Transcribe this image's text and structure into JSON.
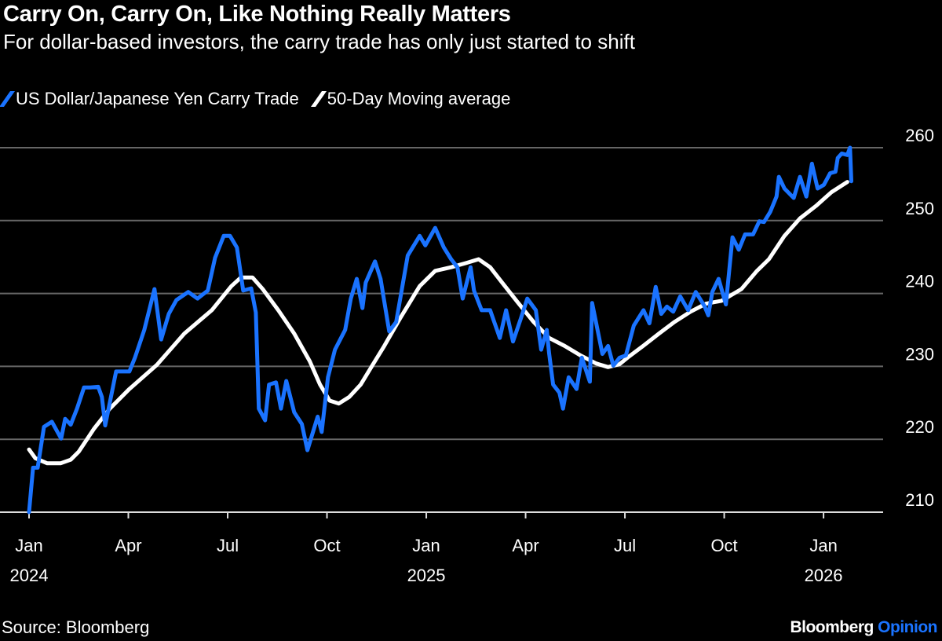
{
  "colors": {
    "blue": "#1a73ff",
    "white": "#ffffff",
    "grid": "#666666",
    "background": "#000000"
  },
  "chart_data": {
    "type": "line",
    "title": "Carry On, Carry On, Like Nothing Really Matters",
    "subtitle": "For dollar-based investors, the carry trade has only just started to shift",
    "x_unit": "months since Jan 2024",
    "ylim": [
      210,
      260
    ],
    "yticks": [
      210,
      220,
      230,
      240,
      250,
      260
    ],
    "axis_position": "right",
    "grid": true,
    "legend_placement": "top-left",
    "xticks": [
      {
        "m": 0,
        "label": "Jan",
        "year": "2024"
      },
      {
        "m": 3,
        "label": "Apr"
      },
      {
        "m": 6,
        "label": "Jul"
      },
      {
        "m": 9,
        "label": "Oct"
      },
      {
        "m": 12,
        "label": "Jan",
        "year": "2025"
      },
      {
        "m": 15,
        "label": "Apr"
      },
      {
        "m": 18,
        "label": "Jul"
      },
      {
        "m": 21,
        "label": "Oct"
      },
      {
        "m": 24,
        "label": "Jan",
        "year": "2026"
      }
    ],
    "series": [
      {
        "name": "US Dollar/Japanese Yen Carry Trade",
        "color": "#1a73ff",
        "points": [
          [
            0,
            210
          ],
          [
            0.12,
            216.1
          ],
          [
            0.26,
            216.1
          ],
          [
            0.45,
            221.7
          ],
          [
            0.69,
            222.4
          ],
          [
            0.97,
            220.1
          ],
          [
            1.09,
            222.8
          ],
          [
            1.26,
            222
          ],
          [
            1.45,
            224.2
          ],
          [
            1.66,
            227.1
          ],
          [
            1.85,
            227.1
          ],
          [
            2.09,
            227.2
          ],
          [
            2.2,
            225.8
          ],
          [
            2.3,
            221.9
          ],
          [
            2.63,
            229.3
          ],
          [
            3.03,
            229.3
          ],
          [
            3.2,
            231.2
          ],
          [
            3.48,
            235
          ],
          [
            3.79,
            240.6
          ],
          [
            3.99,
            233.7
          ],
          [
            4.22,
            237.2
          ],
          [
            4.45,
            239.1
          ],
          [
            4.81,
            240.2
          ],
          [
            5.09,
            239.3
          ],
          [
            5.4,
            240.4
          ],
          [
            5.62,
            244.9
          ],
          [
            5.88,
            247.9
          ],
          [
            6.07,
            247.9
          ],
          [
            6.28,
            246.3
          ],
          [
            6.47,
            240.4
          ],
          [
            6.71,
            240.7
          ],
          [
            6.85,
            237.4
          ],
          [
            6.94,
            224.2
          ],
          [
            7.13,
            222.6
          ],
          [
            7.25,
            227.5
          ],
          [
            7.46,
            227.8
          ],
          [
            7.61,
            224.2
          ],
          [
            7.77,
            228
          ],
          [
            8.01,
            223.7
          ],
          [
            8.24,
            222.1
          ],
          [
            8.41,
            218.5
          ],
          [
            8.72,
            223.1
          ],
          [
            8.84,
            221
          ],
          [
            9.03,
            228.5
          ],
          [
            9.24,
            232.3
          ],
          [
            9.55,
            235
          ],
          [
            9.72,
            239.3
          ],
          [
            9.9,
            242
          ],
          [
            10.07,
            238
          ],
          [
            10.17,
            241.5
          ],
          [
            10.45,
            244.4
          ],
          [
            10.62,
            242
          ],
          [
            10.88,
            234.8
          ],
          [
            11.09,
            236.1
          ],
          [
            11.44,
            245.2
          ],
          [
            11.8,
            247.9
          ],
          [
            11.97,
            246.6
          ],
          [
            12.27,
            249
          ],
          [
            12.53,
            246.3
          ],
          [
            12.75,
            244.7
          ],
          [
            12.94,
            243.6
          ],
          [
            13.1,
            239.3
          ],
          [
            13.34,
            243.6
          ],
          [
            13.44,
            240.4
          ],
          [
            13.67,
            237.7
          ],
          [
            13.93,
            237.7
          ],
          [
            14.22,
            233.9
          ],
          [
            14.41,
            237.7
          ],
          [
            14.62,
            233.4
          ],
          [
            14.86,
            236.6
          ],
          [
            15.05,
            239.3
          ],
          [
            15.31,
            237.7
          ],
          [
            15.47,
            232.3
          ],
          [
            15.64,
            235
          ],
          [
            15.71,
            231.8
          ],
          [
            15.83,
            227.5
          ],
          [
            16.02,
            226.4
          ],
          [
            16.13,
            224.2
          ],
          [
            16.3,
            228.5
          ],
          [
            16.54,
            226.9
          ],
          [
            16.7,
            231.2
          ],
          [
            16.94,
            227.9
          ],
          [
            17.01,
            238.7
          ],
          [
            17.32,
            231.7
          ],
          [
            17.49,
            232.8
          ],
          [
            17.65,
            230.1
          ],
          [
            17.84,
            231.2
          ],
          [
            18.03,
            231.5
          ],
          [
            18.27,
            235.6
          ],
          [
            18.56,
            237.7
          ],
          [
            18.74,
            235.9
          ],
          [
            18.93,
            240.9
          ],
          [
            19.1,
            237.2
          ],
          [
            19.27,
            238.2
          ],
          [
            19.46,
            237.5
          ],
          [
            19.67,
            239.6
          ],
          [
            19.91,
            237.7
          ],
          [
            20.14,
            240.2
          ],
          [
            20.4,
            238.3
          ],
          [
            20.52,
            237
          ],
          [
            20.64,
            240.2
          ],
          [
            20.83,
            242
          ],
          [
            21.05,
            238.5
          ],
          [
            21.25,
            247.7
          ],
          [
            21.44,
            246
          ],
          [
            21.63,
            248.1
          ],
          [
            21.87,
            248.1
          ],
          [
            22.06,
            249.9
          ],
          [
            22.2,
            249.8
          ],
          [
            22.39,
            251.2
          ],
          [
            22.58,
            253.3
          ],
          [
            22.65,
            256
          ],
          [
            22.82,
            254.4
          ],
          [
            23.1,
            253.1
          ],
          [
            23.29,
            256
          ],
          [
            23.48,
            253.3
          ],
          [
            23.65,
            257.8
          ],
          [
            23.82,
            254.4
          ],
          [
            24.01,
            254.9
          ],
          [
            24.2,
            256.5
          ],
          [
            24.36,
            256.7
          ],
          [
            24.43,
            258.6
          ],
          [
            24.55,
            259.2
          ],
          [
            24.72,
            259
          ],
          [
            24.8,
            260
          ],
          [
            24.84,
            255.4
          ]
        ]
      },
      {
        "name": "50-Day Moving average",
        "color": "#ffffff",
        "points": [
          [
            0,
            218.6
          ],
          [
            0.19,
            217.4
          ],
          [
            0.55,
            216.7
          ],
          [
            0.95,
            216.7
          ],
          [
            1.26,
            217.2
          ],
          [
            1.5,
            218.3
          ],
          [
            1.97,
            221.5
          ],
          [
            2.44,
            224.2
          ],
          [
            3.03,
            226.9
          ],
          [
            3.86,
            230.2
          ],
          [
            4.69,
            234.5
          ],
          [
            5.52,
            237.7
          ],
          [
            6.11,
            241
          ],
          [
            6.4,
            242.2
          ],
          [
            6.75,
            242.2
          ],
          [
            7.06,
            240.6
          ],
          [
            7.53,
            237.7
          ],
          [
            8.01,
            234.5
          ],
          [
            8.48,
            230.7
          ],
          [
            8.79,
            227.5
          ],
          [
            9.08,
            225.3
          ],
          [
            9.36,
            224.9
          ],
          [
            9.67,
            225.8
          ],
          [
            10.02,
            227.5
          ],
          [
            10.38,
            230.2
          ],
          [
            10.73,
            232.8
          ],
          [
            11.21,
            236.6
          ],
          [
            11.8,
            241
          ],
          [
            12.27,
            243.1
          ],
          [
            12.75,
            243.6
          ],
          [
            13.22,
            244.2
          ],
          [
            13.58,
            244.7
          ],
          [
            13.93,
            243.6
          ],
          [
            14.29,
            241.5
          ],
          [
            14.76,
            238.8
          ],
          [
            15.24,
            236.1
          ],
          [
            15.71,
            233.9
          ],
          [
            16.18,
            232.8
          ],
          [
            16.66,
            231.5
          ],
          [
            17.13,
            230.4
          ],
          [
            17.49,
            229.9
          ],
          [
            17.84,
            230.3
          ],
          [
            18.08,
            231.2
          ],
          [
            18.55,
            232.8
          ],
          [
            19.03,
            234.5
          ],
          [
            19.5,
            236.1
          ],
          [
            19.98,
            237.5
          ],
          [
            20.45,
            238.6
          ],
          [
            20.92,
            239
          ],
          [
            21.52,
            240.6
          ],
          [
            21.99,
            243.1
          ],
          [
            22.35,
            244.7
          ],
          [
            22.82,
            247.9
          ],
          [
            23.29,
            250.3
          ],
          [
            23.77,
            252
          ],
          [
            24.24,
            253.9
          ],
          [
            24.72,
            255.3
          ]
        ]
      }
    ]
  },
  "source": "Source: Bloomberg",
  "brand": {
    "name": "Bloomberg",
    "suffix": "Opinion"
  }
}
